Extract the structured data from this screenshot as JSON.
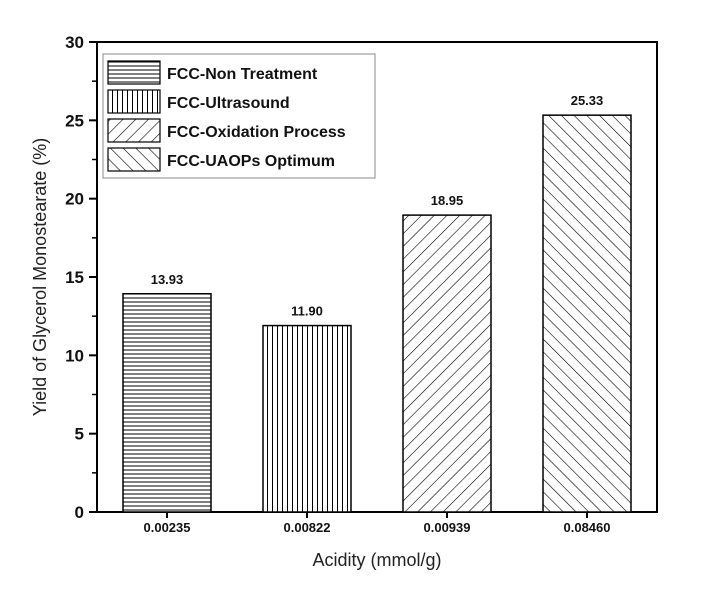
{
  "chart_data": {
    "type": "bar",
    "title": "",
    "xlabel": "Acidity (mmol/g)",
    "ylabel": "Yield of Glycerol Monostearate (%)",
    "categories": [
      "0.00235",
      "0.00822",
      "0.00939",
      "0.08460"
    ],
    "values": [
      13.93,
      11.9,
      18.95,
      25.33
    ],
    "value_labels": [
      "13.93",
      "11.90",
      "18.95",
      "25.33"
    ],
    "series_names": [
      "FCC-Non Treatment",
      "FCC-Ultrasound",
      "FCC-Oxidation Process",
      "FCC-UAOPs Optimum"
    ],
    "patterns": [
      "horizontal-lines",
      "vertical-lines",
      "diagonal-lines-up",
      "diagonal-lines-down"
    ],
    "ylim": [
      0,
      30
    ],
    "yticks": [
      "0",
      "5",
      "10",
      "15",
      "20",
      "25",
      "30"
    ],
    "grid": false,
    "legend_position": "top-left",
    "bar_color": "#ffffff",
    "stroke_color": "#000000"
  }
}
